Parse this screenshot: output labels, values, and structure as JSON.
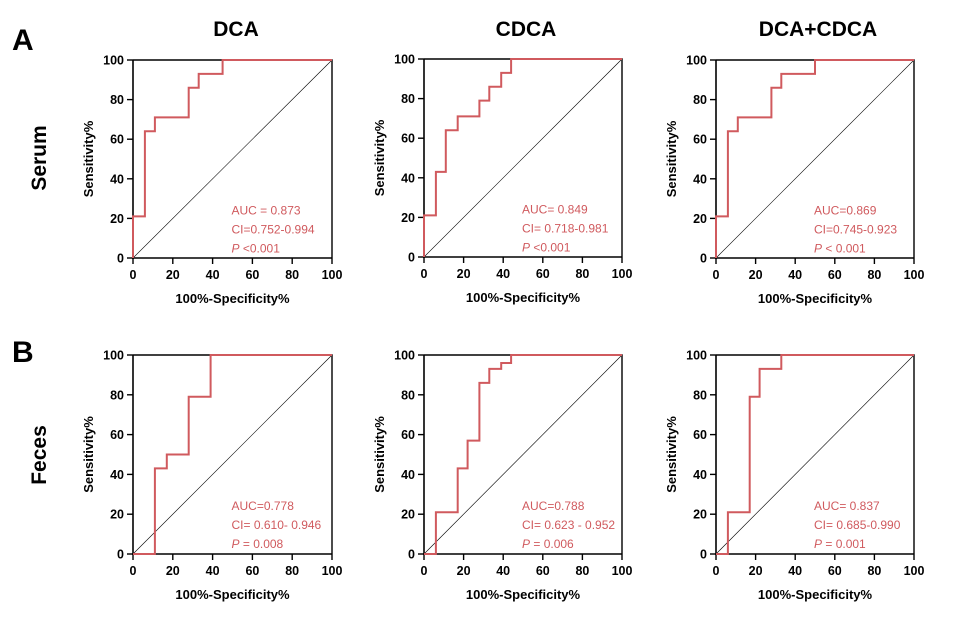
{
  "figure": {
    "panel_labels": [
      "A",
      "B"
    ],
    "column_titles": [
      "DCA",
      "CDCA",
      "DCA+CDCA"
    ],
    "row_labels": [
      "Serum",
      "Feces"
    ]
  },
  "chart_data": [
    {
      "type": "line",
      "title": "DCA",
      "row": "Serum",
      "xlabel": "100%-Specificity%",
      "ylabel": "Sensitivity%",
      "xlim": [
        0,
        100
      ],
      "ylim": [
        0,
        100
      ],
      "xticks": [
        "0",
        "20",
        "40",
        "60",
        "80",
        "100"
      ],
      "yticks": [
        "0",
        "20",
        "40",
        "60",
        "80",
        "100"
      ],
      "series": [
        {
          "name": "ROC",
          "x": [
            0,
            0,
            6,
            6,
            11,
            11,
            28,
            28,
            33,
            33,
            45,
            45,
            100
          ],
          "y": [
            0,
            21,
            21,
            64,
            64,
            71,
            71,
            86,
            86,
            93,
            93,
            100,
            100
          ]
        }
      ],
      "annotation": {
        "auc": "AUC = 0.873",
        "ci": "CI=0.752-0.994",
        "p_symbol": "P",
        "p_value": " <0.001"
      }
    },
    {
      "type": "line",
      "title": "CDCA",
      "row": "Serum",
      "xlabel": "100%-Specificity%",
      "ylabel": "Sensitivity%",
      "xlim": [
        0,
        100
      ],
      "ylim": [
        0,
        100
      ],
      "xticks": [
        "0",
        "20",
        "40",
        "60",
        "80",
        "100"
      ],
      "yticks": [
        "0",
        "20",
        "40",
        "60",
        "80",
        "100"
      ],
      "series": [
        {
          "name": "ROC",
          "x": [
            0,
            0,
            6,
            6,
            11,
            11,
            17,
            17,
            28,
            28,
            33,
            33,
            39,
            39,
            44,
            44,
            100
          ],
          "y": [
            0,
            21,
            21,
            43,
            43,
            64,
            64,
            71,
            71,
            79,
            79,
            86,
            86,
            93,
            93,
            100,
            100
          ]
        }
      ],
      "annotation": {
        "auc": "AUC= 0.849",
        "ci": "CI= 0.718-0.981",
        "p_symbol": "P",
        "p_value": " <0.001"
      }
    },
    {
      "type": "line",
      "title": "DCA+CDCA",
      "row": "Serum",
      "xlabel": "100%-Specificity%",
      "ylabel": "Sensitivity%",
      "xlim": [
        0,
        100
      ],
      "ylim": [
        0,
        100
      ],
      "xticks": [
        "0",
        "20",
        "40",
        "60",
        "80",
        "100"
      ],
      "yticks": [
        "0",
        "20",
        "40",
        "60",
        "80",
        "100"
      ],
      "series": [
        {
          "name": "ROC",
          "x": [
            0,
            0,
            6,
            6,
            11,
            11,
            28,
            28,
            33,
            33,
            50,
            50,
            100
          ],
          "y": [
            0,
            21,
            21,
            64,
            64,
            71,
            71,
            86,
            86,
            93,
            93,
            100,
            100
          ]
        }
      ],
      "annotation": {
        "auc": "AUC=0.869",
        "ci": "CI=0.745-0.923",
        "p_symbol": "P",
        "p_value": " < 0.001"
      }
    },
    {
      "type": "line",
      "title": "DCA",
      "row": "Feces",
      "xlabel": "100%-Specificity%",
      "ylabel": "Sensitivity%",
      "xlim": [
        0,
        100
      ],
      "ylim": [
        0,
        100
      ],
      "xticks": [
        "0",
        "20",
        "40",
        "60",
        "80",
        "100"
      ],
      "yticks": [
        "0",
        "20",
        "40",
        "60",
        "80",
        "100"
      ],
      "series": [
        {
          "name": "ROC",
          "x": [
            0,
            11,
            11,
            17,
            17,
            28,
            28,
            39,
            39,
            100
          ],
          "y": [
            0,
            0,
            43,
            43,
            50,
            50,
            79,
            79,
            100,
            100
          ]
        }
      ],
      "annotation": {
        "auc": "AUC=0.778",
        "ci": "CI= 0.610- 0.946",
        "p_symbol": "P",
        "p_value": " = 0.008"
      }
    },
    {
      "type": "line",
      "title": "CDCA",
      "row": "Feces",
      "xlabel": "100%-Specificity%",
      "ylabel": "Sensitivity%",
      "xlim": [
        0,
        100
      ],
      "ylim": [
        0,
        100
      ],
      "xticks": [
        "0",
        "20",
        "40",
        "60",
        "80",
        "100"
      ],
      "yticks": [
        "0",
        "20",
        "40",
        "60",
        "80",
        "100"
      ],
      "series": [
        {
          "name": "ROC",
          "x": [
            0,
            6,
            6,
            17,
            17,
            22,
            22,
            28,
            28,
            33,
            33,
            39,
            39,
            44,
            44,
            100
          ],
          "y": [
            0,
            0,
            21,
            21,
            43,
            43,
            57,
            57,
            86,
            86,
            93,
            93,
            96,
            96,
            100,
            100
          ]
        }
      ],
      "annotation": {
        "auc": "AUC=0.788",
        "ci": "CI= 0.623 - 0.952",
        "p_symbol": "P",
        "p_value": " = 0.006"
      }
    },
    {
      "type": "line",
      "title": "DCA+CDCA",
      "row": "Feces",
      "xlabel": "100%-Specificity%",
      "ylabel": "Sensitivity%",
      "xlim": [
        0,
        100
      ],
      "ylim": [
        0,
        100
      ],
      "xticks": [
        "0",
        "20",
        "40",
        "60",
        "80",
        "100"
      ],
      "yticks": [
        "0",
        "20",
        "40",
        "60",
        "80",
        "100"
      ],
      "series": [
        {
          "name": "ROC",
          "x": [
            0,
            6,
            6,
            17,
            17,
            22,
            22,
            33,
            33,
            100
          ],
          "y": [
            0,
            0,
            21,
            21,
            79,
            79,
            93,
            93,
            100,
            100
          ]
        }
      ],
      "annotation": {
        "auc": "AUC= 0.837",
        "ci": "CI= 0.685-0.990",
        "p_symbol": "P",
        "p_value": " = 0.001"
      }
    }
  ]
}
